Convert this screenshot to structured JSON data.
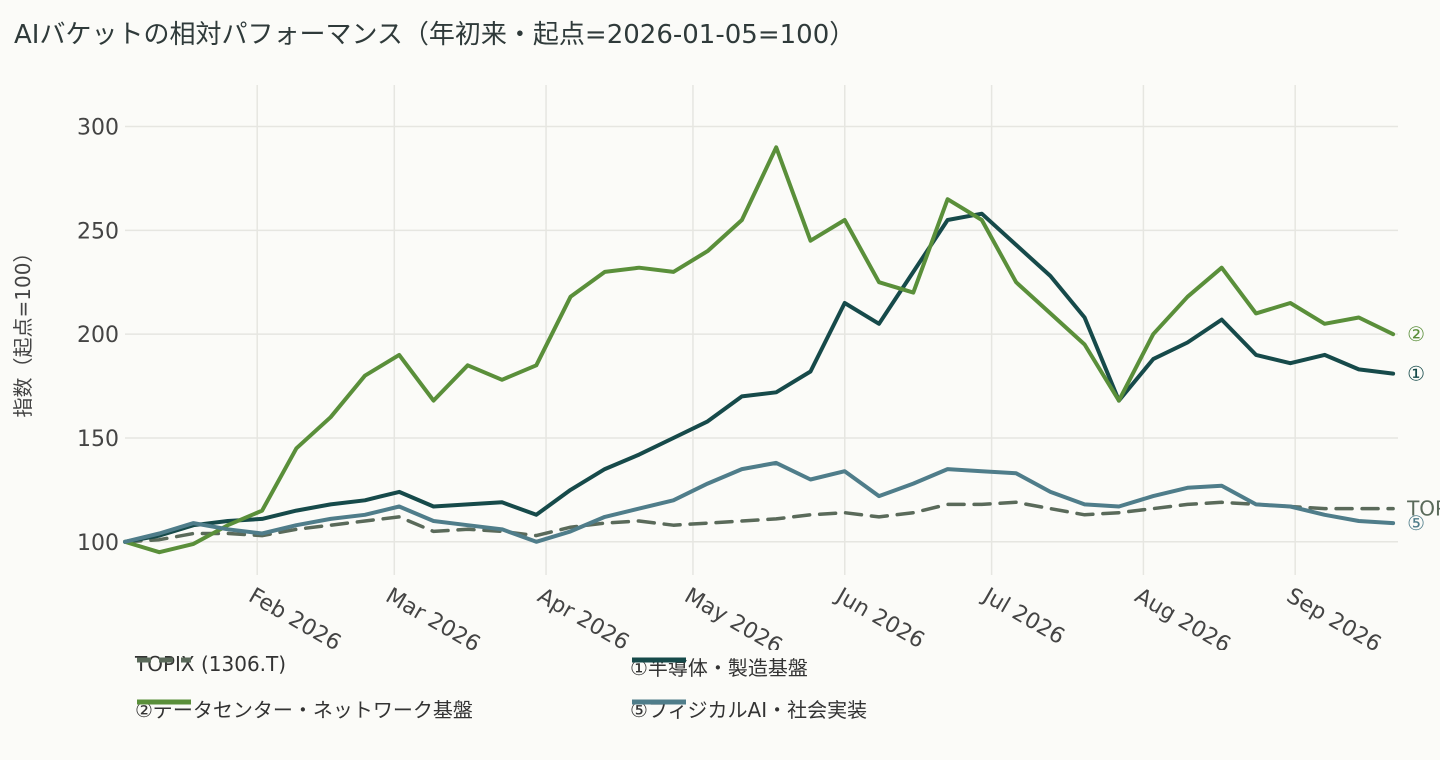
{
  "title": "AIバケットの相対パフォーマンス（年初来・起点=2026-01-05=100）",
  "chart_data": {
    "type": "line",
    "ylabel": "指数（起点=100）",
    "ylim": [
      84,
      320
    ],
    "yticks": [
      100,
      150,
      200,
      250,
      300
    ],
    "xlim": [
      "2026-01-05",
      "2026-09-22"
    ],
    "xticks": [
      {
        "date": "2026-02-01",
        "label": "Feb 2026"
      },
      {
        "date": "2026-03-01",
        "label": "Mar 2026"
      },
      {
        "date": "2026-04-01",
        "label": "Apr 2026"
      },
      {
        "date": "2026-05-01",
        "label": "May 2026"
      },
      {
        "date": "2026-06-01",
        "label": "Jun 2026"
      },
      {
        "date": "2026-07-01",
        "label": "Jul 2026"
      },
      {
        "date": "2026-08-01",
        "label": "Aug 2026"
      },
      {
        "date": "2026-09-01",
        "label": "Sep 2026"
      }
    ],
    "grid": true,
    "legend_position": "bottom",
    "series": [
      {
        "name": "TOPIX (1306.T)",
        "end_label": "TOPIX",
        "color": "#5a6a5a",
        "dash": true,
        "points": [
          [
            "2026-01-05",
            100
          ],
          [
            "2026-01-12",
            101
          ],
          [
            "2026-01-19",
            104
          ],
          [
            "2026-01-26",
            104
          ],
          [
            "2026-02-02",
            103
          ],
          [
            "2026-02-09",
            106
          ],
          [
            "2026-02-16",
            108
          ],
          [
            "2026-02-23",
            110
          ],
          [
            "2026-03-02",
            112
          ],
          [
            "2026-03-09",
            105
          ],
          [
            "2026-03-16",
            106
          ],
          [
            "2026-03-23",
            105
          ],
          [
            "2026-03-30",
            103
          ],
          [
            "2026-04-06",
            107
          ],
          [
            "2026-04-13",
            109
          ],
          [
            "2026-04-20",
            110
          ],
          [
            "2026-04-27",
            108
          ],
          [
            "2026-05-04",
            109
          ],
          [
            "2026-05-11",
            110
          ],
          [
            "2026-05-18",
            111
          ],
          [
            "2026-05-25",
            113
          ],
          [
            "2026-06-01",
            114
          ],
          [
            "2026-06-08",
            112
          ],
          [
            "2026-06-15",
            114
          ],
          [
            "2026-06-22",
            118
          ],
          [
            "2026-06-29",
            118
          ],
          [
            "2026-07-06",
            119
          ],
          [
            "2026-07-13",
            116
          ],
          [
            "2026-07-20",
            113
          ],
          [
            "2026-07-27",
            114
          ],
          [
            "2026-08-03",
            116
          ],
          [
            "2026-08-10",
            118
          ],
          [
            "2026-08-17",
            119
          ],
          [
            "2026-08-24",
            118
          ],
          [
            "2026-08-31",
            117
          ],
          [
            "2026-09-07",
            116
          ],
          [
            "2026-09-14",
            116
          ],
          [
            "2026-09-21",
            116
          ]
        ]
      },
      {
        "name": "①半導体・製造基盤",
        "end_label": "①",
        "color": "#164a4a",
        "dash": false,
        "points": [
          [
            "2026-01-05",
            100
          ],
          [
            "2026-01-12",
            103
          ],
          [
            "2026-01-19",
            108
          ],
          [
            "2026-01-26",
            110
          ],
          [
            "2026-02-02",
            111
          ],
          [
            "2026-02-09",
            115
          ],
          [
            "2026-02-16",
            118
          ],
          [
            "2026-02-23",
            120
          ],
          [
            "2026-03-02",
            124
          ],
          [
            "2026-03-09",
            117
          ],
          [
            "2026-03-16",
            118
          ],
          [
            "2026-03-23",
            119
          ],
          [
            "2026-03-30",
            113
          ],
          [
            "2026-04-06",
            125
          ],
          [
            "2026-04-13",
            135
          ],
          [
            "2026-04-20",
            142
          ],
          [
            "2026-04-27",
            150
          ],
          [
            "2026-05-04",
            158
          ],
          [
            "2026-05-11",
            170
          ],
          [
            "2026-05-18",
            172
          ],
          [
            "2026-05-25",
            182
          ],
          [
            "2026-06-01",
            215
          ],
          [
            "2026-06-08",
            205
          ],
          [
            "2026-06-15",
            230
          ],
          [
            "2026-06-22",
            255
          ],
          [
            "2026-06-29",
            258
          ],
          [
            "2026-07-06",
            243
          ],
          [
            "2026-07-13",
            228
          ],
          [
            "2026-07-20",
            208
          ],
          [
            "2026-07-27",
            168
          ],
          [
            "2026-08-03",
            188
          ],
          [
            "2026-08-10",
            196
          ],
          [
            "2026-08-17",
            207
          ],
          [
            "2026-08-24",
            190
          ],
          [
            "2026-08-31",
            186
          ],
          [
            "2026-09-07",
            190
          ],
          [
            "2026-09-14",
            183
          ],
          [
            "2026-09-21",
            181
          ]
        ]
      },
      {
        "name": "②データセンター・ネットワーク基盤",
        "end_label": "②",
        "color": "#5a8f3a",
        "dash": false,
        "points": [
          [
            "2026-01-05",
            100
          ],
          [
            "2026-01-12",
            95
          ],
          [
            "2026-01-19",
            99
          ],
          [
            "2026-01-26",
            108
          ],
          [
            "2026-02-02",
            115
          ],
          [
            "2026-02-09",
            145
          ],
          [
            "2026-02-16",
            160
          ],
          [
            "2026-02-23",
            180
          ],
          [
            "2026-03-02",
            190
          ],
          [
            "2026-03-09",
            168
          ],
          [
            "2026-03-16",
            185
          ],
          [
            "2026-03-23",
            178
          ],
          [
            "2026-03-30",
            185
          ],
          [
            "2026-04-06",
            218
          ],
          [
            "2026-04-13",
            230
          ],
          [
            "2026-04-20",
            232
          ],
          [
            "2026-04-27",
            230
          ],
          [
            "2026-05-04",
            240
          ],
          [
            "2026-05-11",
            255
          ],
          [
            "2026-05-18",
            290
          ],
          [
            "2026-05-25",
            245
          ],
          [
            "2026-06-01",
            255
          ],
          [
            "2026-06-08",
            225
          ],
          [
            "2026-06-15",
            220
          ],
          [
            "2026-06-22",
            265
          ],
          [
            "2026-06-29",
            255
          ],
          [
            "2026-07-06",
            225
          ],
          [
            "2026-07-13",
            210
          ],
          [
            "2026-07-20",
            195
          ],
          [
            "2026-07-27",
            168
          ],
          [
            "2026-08-03",
            200
          ],
          [
            "2026-08-10",
            218
          ],
          [
            "2026-08-17",
            232
          ],
          [
            "2026-08-24",
            210
          ],
          [
            "2026-08-31",
            215
          ],
          [
            "2026-09-07",
            205
          ],
          [
            "2026-09-14",
            208
          ],
          [
            "2026-09-21",
            200
          ]
        ]
      },
      {
        "name": "⑤フィジカルAI・社会実装",
        "end_label": "⑤",
        "color": "#4f7d8a",
        "dash": false,
        "points": [
          [
            "2026-01-05",
            100
          ],
          [
            "2026-01-12",
            104
          ],
          [
            "2026-01-19",
            109
          ],
          [
            "2026-01-26",
            106
          ],
          [
            "2026-02-02",
            104
          ],
          [
            "2026-02-09",
            108
          ],
          [
            "2026-02-16",
            111
          ],
          [
            "2026-02-23",
            113
          ],
          [
            "2026-03-02",
            117
          ],
          [
            "2026-03-09",
            110
          ],
          [
            "2026-03-16",
            108
          ],
          [
            "2026-03-23",
            106
          ],
          [
            "2026-03-30",
            100
          ],
          [
            "2026-04-06",
            105
          ],
          [
            "2026-04-13",
            112
          ],
          [
            "2026-04-20",
            116
          ],
          [
            "2026-04-27",
            120
          ],
          [
            "2026-05-04",
            128
          ],
          [
            "2026-05-11",
            135
          ],
          [
            "2026-05-18",
            138
          ],
          [
            "2026-05-25",
            130
          ],
          [
            "2026-06-01",
            134
          ],
          [
            "2026-06-08",
            122
          ],
          [
            "2026-06-15",
            128
          ],
          [
            "2026-06-22",
            135
          ],
          [
            "2026-06-29",
            134
          ],
          [
            "2026-07-06",
            133
          ],
          [
            "2026-07-13",
            124
          ],
          [
            "2026-07-20",
            118
          ],
          [
            "2026-07-27",
            117
          ],
          [
            "2026-08-03",
            122
          ],
          [
            "2026-08-10",
            126
          ],
          [
            "2026-08-17",
            127
          ],
          [
            "2026-08-24",
            118
          ],
          [
            "2026-08-31",
            117
          ],
          [
            "2026-09-07",
            113
          ],
          [
            "2026-09-14",
            110
          ],
          [
            "2026-09-21",
            109
          ]
        ]
      }
    ]
  },
  "legend": {
    "items": [
      {
        "label": "TOPIX (1306.T)",
        "color": "#5a6a5a"
      },
      {
        "label": "①半導体・製造基盤",
        "color": "#164a4a"
      },
      {
        "label": "②データセンター・ネットワーク基盤",
        "color": "#5a8f3a"
      },
      {
        "label": "⑤フィジカルAI・社会実装",
        "color": "#4f7d8a"
      }
    ]
  }
}
